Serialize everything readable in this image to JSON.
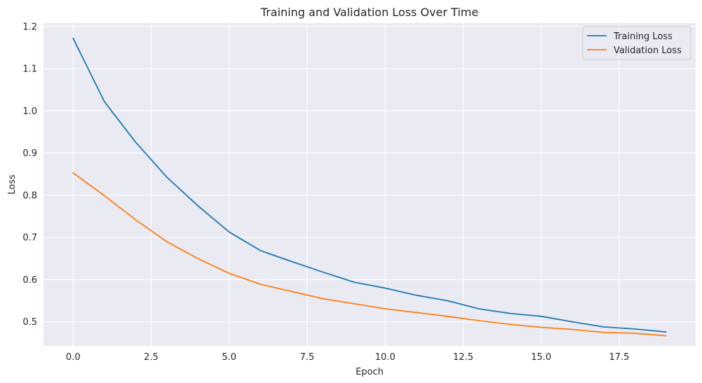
{
  "chart_data": {
    "type": "line",
    "title": "Training and Validation Loss Over Time",
    "xlabel": "Epoch",
    "ylabel": "Loss",
    "x": [
      0,
      1,
      2,
      3,
      4,
      5,
      6,
      7,
      8,
      9,
      10,
      11,
      12,
      13,
      14,
      15,
      16,
      17,
      18,
      19
    ],
    "xlim": [
      -0.95,
      19.95
    ],
    "ylim": [
      0.443,
      1.208
    ],
    "xticks": [
      0.0,
      2.5,
      5.0,
      7.5,
      10.0,
      12.5,
      15.0,
      17.5
    ],
    "xtick_labels": [
      "0.0",
      "2.5",
      "5.0",
      "7.5",
      "10.0",
      "12.5",
      "15.0",
      "17.5"
    ],
    "yticks": [
      0.5,
      0.6,
      0.7,
      0.8,
      0.9,
      1.0,
      1.1,
      1.2
    ],
    "ytick_labels": [
      "0.5",
      "0.6",
      "0.7",
      "0.8",
      "0.9",
      "1.0",
      "1.1",
      "1.2"
    ],
    "grid": true,
    "legend_position": "top-right",
    "series": [
      {
        "name": "Training Loss",
        "color": "#1f77b4",
        "values": [
          1.172,
          1.022,
          0.926,
          0.843,
          0.775,
          0.713,
          0.669,
          0.643,
          0.618,
          0.594,
          0.58,
          0.563,
          0.55,
          0.531,
          0.52,
          0.513,
          0.5,
          0.488,
          0.483,
          0.476
        ]
      },
      {
        "name": "Validation Loss",
        "color": "#ff7f0e",
        "values": [
          0.853,
          0.799,
          0.742,
          0.69,
          0.65,
          0.615,
          0.589,
          0.572,
          0.555,
          0.543,
          0.531,
          0.522,
          0.513,
          0.503,
          0.494,
          0.487,
          0.482,
          0.475,
          0.473,
          0.467
        ]
      }
    ]
  },
  "colors": {
    "plot_background": "#eaeaf2",
    "grid": "#ffffff",
    "text": "#262626"
  }
}
